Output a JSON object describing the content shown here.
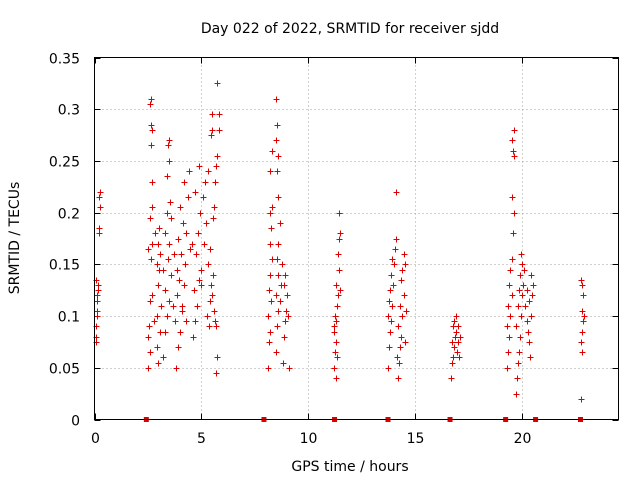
{
  "chart_data": {
    "type": "scatter",
    "title": "Day 022 of 2022, SRMTID for receiver sjdd",
    "xlabel": "GPS time / hours",
    "ylabel": "SRMTID / TECUs",
    "xlim": [
      0,
      24.5
    ],
    "ylim": [
      0,
      0.35
    ],
    "x_ticks": [
      0,
      5,
      10,
      15,
      20
    ],
    "x_tick_labels": [
      "0",
      "5",
      "10",
      "15",
      "20"
    ],
    "y_ticks": [
      0,
      0.05,
      0.1,
      0.15,
      0.2,
      0.25,
      0.3,
      0.35
    ],
    "y_tick_labels": [
      "0",
      "0.05",
      "0.1",
      "0.15",
      "0.2",
      "0.25",
      "0.3",
      "0.35"
    ],
    "grid": true,
    "marker": "+",
    "color": "#dd0000",
    "x_axis_markers": [
      2.4,
      7.9,
      11.2,
      13.7,
      16.6,
      19.2,
      20.6,
      22.7
    ],
    "clusters": [
      {
        "x_range": [
          0.0,
          0.35
        ],
        "points": [
          [
            0.05,
            0.075
          ],
          [
            0.08,
            0.09
          ],
          [
            0.1,
            0.1
          ],
          [
            0.12,
            0.115
          ],
          [
            0.15,
            0.13
          ],
          [
            0.05,
            0.135
          ],
          [
            0.1,
            0.12
          ],
          [
            0.2,
            0.185
          ],
          [
            0.22,
            0.18
          ],
          [
            0.25,
            0.205
          ],
          [
            0.25,
            0.22
          ],
          [
            0.2,
            0.215
          ],
          [
            0.05,
            0.08
          ],
          [
            0.12,
            0.105
          ],
          [
            0.18,
            0.125
          ]
        ]
      },
      {
        "x_range": [
          2.4,
          3.1
        ],
        "points": [
          [
            2.5,
            0.05
          ],
          [
            2.6,
            0.065
          ],
          [
            2.5,
            0.08
          ],
          [
            2.55,
            0.09
          ],
          [
            2.6,
            0.115
          ],
          [
            2.7,
            0.12
          ],
          [
            2.65,
            0.155
          ],
          [
            2.5,
            0.165
          ],
          [
            2.7,
            0.17
          ],
          [
            2.6,
            0.195
          ],
          [
            2.7,
            0.205
          ],
          [
            2.7,
            0.23
          ],
          [
            2.65,
            0.265
          ],
          [
            2.7,
            0.28
          ],
          [
            2.65,
            0.285
          ],
          [
            2.6,
            0.305
          ],
          [
            2.65,
            0.31
          ],
          [
            2.9,
            0.07
          ],
          [
            2.9,
            0.1
          ],
          [
            2.95,
            0.13
          ],
          [
            3.0,
            0.145
          ],
          [
            2.9,
            0.15
          ],
          [
            3.05,
            0.16
          ],
          [
            2.85,
            0.18
          ],
          [
            3.0,
            0.185
          ],
          [
            2.95,
            0.055
          ],
          [
            3.05,
            0.085
          ],
          [
            2.8,
            0.095
          ],
          [
            3.1,
            0.11
          ],
          [
            2.95,
            0.17
          ]
        ]
      },
      {
        "x_range": [
          3.1,
          4.5
        ],
        "points": [
          [
            3.2,
            0.06
          ],
          [
            3.3,
            0.085
          ],
          [
            3.4,
            0.1
          ],
          [
            3.5,
            0.115
          ],
          [
            3.3,
            0.125
          ],
          [
            3.6,
            0.14
          ],
          [
            3.2,
            0.145
          ],
          [
            3.45,
            0.155
          ],
          [
            3.7,
            0.16
          ],
          [
            3.5,
            0.17
          ],
          [
            3.3,
            0.18
          ],
          [
            3.6,
            0.195
          ],
          [
            3.4,
            0.2
          ],
          [
            3.55,
            0.21
          ],
          [
            3.4,
            0.235
          ],
          [
            3.5,
            0.25
          ],
          [
            3.45,
            0.265
          ],
          [
            3.5,
            0.27
          ],
          [
            3.8,
            0.05
          ],
          [
            3.9,
            0.07
          ],
          [
            4.0,
            0.085
          ],
          [
            3.75,
            0.095
          ],
          [
            4.1,
            0.105
          ],
          [
            3.85,
            0.12
          ],
          [
            4.2,
            0.13
          ],
          [
            3.95,
            0.135
          ],
          [
            4.25,
            0.15
          ],
          [
            4.05,
            0.16
          ],
          [
            3.9,
            0.175
          ],
          [
            4.3,
            0.18
          ],
          [
            4.15,
            0.19
          ],
          [
            4.0,
            0.205
          ],
          [
            4.35,
            0.215
          ],
          [
            4.2,
            0.23
          ],
          [
            4.4,
            0.24
          ],
          [
            3.65,
            0.11
          ],
          [
            3.85,
            0.145
          ],
          [
            4.45,
            0.165
          ],
          [
            4.1,
            0.11
          ],
          [
            4.3,
            0.095
          ]
        ]
      },
      {
        "x_range": [
          4.5,
          6.0
        ],
        "points": [
          [
            4.6,
            0.08
          ],
          [
            4.7,
            0.095
          ],
          [
            4.8,
            0.11
          ],
          [
            4.65,
            0.125
          ],
          [
            4.9,
            0.135
          ],
          [
            5.0,
            0.145
          ],
          [
            4.75,
            0.16
          ],
          [
            5.1,
            0.17
          ],
          [
            4.85,
            0.18
          ],
          [
            5.2,
            0.19
          ],
          [
            4.95,
            0.2
          ],
          [
            5.05,
            0.215
          ],
          [
            4.7,
            0.22
          ],
          [
            5.15,
            0.23
          ],
          [
            5.3,
            0.24
          ],
          [
            4.9,
            0.245
          ],
          [
            5.25,
            0.1
          ],
          [
            5.35,
            0.09
          ],
          [
            5.4,
            0.115
          ],
          [
            5.45,
            0.13
          ],
          [
            5.5,
            0.12
          ],
          [
            5.55,
            0.14
          ],
          [
            5.6,
            0.105
          ],
          [
            5.65,
            0.095
          ],
          [
            5.7,
            0.09
          ],
          [
            5.75,
            0.06
          ],
          [
            5.7,
            0.045
          ],
          [
            5.4,
            0.165
          ],
          [
            5.55,
            0.195
          ],
          [
            5.6,
            0.205
          ],
          [
            5.65,
            0.23
          ],
          [
            5.7,
            0.245
          ],
          [
            5.75,
            0.255
          ],
          [
            5.45,
            0.275
          ],
          [
            5.5,
            0.28
          ],
          [
            5.8,
            0.28
          ],
          [
            5.8,
            0.295
          ],
          [
            5.5,
            0.295
          ],
          [
            5.75,
            0.325
          ],
          [
            4.55,
            0.17
          ],
          [
            5.0,
            0.13
          ],
          [
            5.3,
            0.15
          ]
        ]
      },
      {
        "x_range": [
          8.0,
          9.2
        ],
        "points": [
          [
            8.1,
            0.05
          ],
          [
            8.15,
            0.075
          ],
          [
            8.2,
            0.085
          ],
          [
            8.1,
            0.1
          ],
          [
            8.25,
            0.115
          ],
          [
            8.15,
            0.125
          ],
          [
            8.2,
            0.14
          ],
          [
            8.3,
            0.155
          ],
          [
            8.2,
            0.17
          ],
          [
            8.25,
            0.185
          ],
          [
            8.2,
            0.2
          ],
          [
            8.3,
            0.205
          ],
          [
            8.2,
            0.24
          ],
          [
            8.3,
            0.26
          ],
          [
            8.5,
            0.065
          ],
          [
            8.55,
            0.09
          ],
          [
            8.6,
            0.105
          ],
          [
            8.65,
            0.115
          ],
          [
            8.5,
            0.12
          ],
          [
            8.7,
            0.13
          ],
          [
            8.6,
            0.14
          ],
          [
            8.55,
            0.155
          ],
          [
            8.6,
            0.17
          ],
          [
            8.65,
            0.19
          ],
          [
            8.6,
            0.215
          ],
          [
            8.55,
            0.24
          ],
          [
            8.6,
            0.255
          ],
          [
            8.5,
            0.27
          ],
          [
            8.55,
            0.285
          ],
          [
            8.5,
            0.31
          ],
          [
            8.8,
            0.055
          ],
          [
            8.85,
            0.08
          ],
          [
            8.9,
            0.095
          ],
          [
            8.95,
            0.105
          ],
          [
            9.0,
            0.12
          ],
          [
            8.85,
            0.13
          ],
          [
            9.05,
            0.1
          ],
          [
            8.9,
            0.14
          ],
          [
            9.1,
            0.05
          ],
          [
            8.75,
            0.15
          ]
        ]
      },
      {
        "x_range": [
          11.1,
          11.7
        ],
        "points": [
          [
            11.2,
            0.05
          ],
          [
            11.25,
            0.065
          ],
          [
            11.3,
            0.075
          ],
          [
            11.2,
            0.085
          ],
          [
            11.3,
            0.095
          ],
          [
            11.25,
            0.1
          ],
          [
            11.35,
            0.11
          ],
          [
            11.4,
            0.12
          ],
          [
            11.3,
            0.13
          ],
          [
            11.45,
            0.145
          ],
          [
            11.4,
            0.16
          ],
          [
            11.45,
            0.175
          ],
          [
            11.5,
            0.18
          ],
          [
            11.45,
            0.2
          ],
          [
            11.3,
            0.04
          ],
          [
            11.5,
            0.125
          ],
          [
            11.2,
            0.09
          ],
          [
            11.35,
            0.06
          ]
        ]
      },
      {
        "x_range": [
          13.6,
          14.6
        ],
        "points": [
          [
            13.7,
            0.05
          ],
          [
            13.75,
            0.07
          ],
          [
            13.8,
            0.085
          ],
          [
            13.85,
            0.095
          ],
          [
            13.7,
            0.1
          ],
          [
            13.9,
            0.11
          ],
          [
            13.75,
            0.115
          ],
          [
            13.8,
            0.125
          ],
          [
            13.95,
            0.13
          ],
          [
            13.85,
            0.14
          ],
          [
            14.0,
            0.15
          ],
          [
            13.9,
            0.155
          ],
          [
            14.05,
            0.165
          ],
          [
            14.1,
            0.175
          ],
          [
            14.1,
            0.22
          ],
          [
            14.2,
            0.04
          ],
          [
            14.25,
            0.055
          ],
          [
            14.3,
            0.07
          ],
          [
            14.35,
            0.08
          ],
          [
            14.2,
            0.09
          ],
          [
            14.4,
            0.1
          ],
          [
            14.3,
            0.11
          ],
          [
            14.45,
            0.12
          ],
          [
            14.35,
            0.135
          ],
          [
            14.4,
            0.145
          ],
          [
            14.5,
            0.15
          ],
          [
            14.45,
            0.16
          ],
          [
            14.5,
            0.075
          ],
          [
            14.15,
            0.06
          ],
          [
            14.55,
            0.105
          ]
        ]
      },
      {
        "x_range": [
          16.6,
          17.2
        ],
        "points": [
          [
            16.65,
            0.04
          ],
          [
            16.7,
            0.055
          ],
          [
            16.75,
            0.06
          ],
          [
            16.8,
            0.07
          ],
          [
            16.7,
            0.075
          ],
          [
            16.85,
            0.08
          ],
          [
            16.9,
            0.085
          ],
          [
            16.75,
            0.09
          ],
          [
            16.8,
            0.095
          ],
          [
            16.9,
            0.1
          ],
          [
            17.0,
            0.075
          ],
          [
            17.05,
            0.06
          ],
          [
            17.0,
            0.09
          ],
          [
            16.95,
            0.065
          ],
          [
            17.1,
            0.08
          ]
        ]
      },
      {
        "x_range": [
          19.2,
          20.7
        ],
        "points": [
          [
            19.3,
            0.05
          ],
          [
            19.35,
            0.065
          ],
          [
            19.4,
            0.08
          ],
          [
            19.3,
            0.09
          ],
          [
            19.45,
            0.1
          ],
          [
            19.35,
            0.11
          ],
          [
            19.5,
            0.12
          ],
          [
            19.4,
            0.13
          ],
          [
            19.45,
            0.145
          ],
          [
            19.5,
            0.155
          ],
          [
            19.55,
            0.18
          ],
          [
            19.6,
            0.2
          ],
          [
            19.5,
            0.215
          ],
          [
            19.6,
            0.255
          ],
          [
            19.55,
            0.26
          ],
          [
            19.5,
            0.27
          ],
          [
            19.6,
            0.28
          ],
          [
            19.7,
            0.025
          ],
          [
            19.75,
            0.04
          ],
          [
            19.8,
            0.055
          ],
          [
            19.85,
            0.065
          ],
          [
            19.9,
            0.08
          ],
          [
            19.7,
            0.09
          ],
          [
            19.95,
            0.1
          ],
          [
            19.8,
            0.11
          ],
          [
            20.0,
            0.12
          ],
          [
            19.85,
            0.125
          ],
          [
            20.05,
            0.13
          ],
          [
            19.9,
            0.14
          ],
          [
            20.1,
            0.145
          ],
          [
            20.0,
            0.15
          ],
          [
            19.95,
            0.16
          ],
          [
            20.15,
            0.11
          ],
          [
            20.2,
            0.095
          ],
          [
            20.25,
            0.085
          ],
          [
            20.3,
            0.075
          ],
          [
            20.35,
            0.06
          ],
          [
            20.4,
            0.1
          ],
          [
            20.45,
            0.12
          ],
          [
            20.5,
            0.13
          ],
          [
            20.4,
            0.14
          ],
          [
            20.3,
            0.115
          ],
          [
            20.2,
            0.125
          ]
        ]
      },
      {
        "x_range": [
          22.7,
          23.0
        ],
        "points": [
          [
            22.75,
            0.02
          ],
          [
            22.8,
            0.065
          ],
          [
            22.75,
            0.075
          ],
          [
            22.8,
            0.085
          ],
          [
            22.85,
            0.095
          ],
          [
            22.8,
            0.105
          ],
          [
            22.85,
            0.12
          ],
          [
            22.8,
            0.13
          ],
          [
            22.75,
            0.135
          ],
          [
            22.9,
            0.1
          ]
        ]
      }
    ]
  }
}
